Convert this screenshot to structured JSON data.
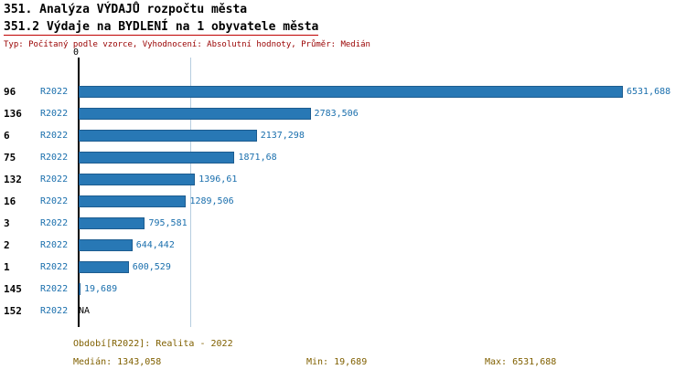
{
  "header": {
    "title1": "351. Analýza VÝDAJŮ rozpočtu města",
    "title2": "351.2 Výdaje na BYDLENÍ na 1 obyvatele města",
    "subtitle": "Typ: Počítaný podle vzorce, Vyhodnocení: Absolutní hodnoty, Průměr: Medián"
  },
  "chart_data": {
    "type": "bar",
    "orientation": "horizontal",
    "title": "351.2 Výdaje na BYDLENÍ na 1 obyvatele města",
    "categories": [
      "96",
      "136",
      "6",
      "75",
      "132",
      "16",
      "3",
      "2",
      "1",
      "145",
      "152"
    ],
    "series_label": "R2022",
    "values": [
      6531.688,
      2783.506,
      2137.298,
      1871.68,
      1396.61,
      1289.506,
      795.581,
      644.442,
      600.529,
      19.689,
      null
    ],
    "value_labels": [
      "6531,688",
      "2783,506",
      "2137,298",
      "1871,68",
      "1396,61",
      "1289,506",
      "795,581",
      "644,442",
      "600,529",
      "19,689",
      "NA"
    ],
    "axis_zero_label": "0",
    "xlim": [
      0,
      7100
    ],
    "median": 1343.058,
    "min": 19.689,
    "max": 6531.688,
    "bar_color": "#2878b5",
    "median_line_color": "#b6cde0",
    "grid": "median-line-only",
    "legend": "none"
  },
  "colors": {
    "title2_underline": "#c00000",
    "subtitle_text": "#990000",
    "period_and_stats_text": "#806000",
    "value_label_text": "#1a6fad"
  },
  "footer": {
    "period": "Období[R2022]: Realita - 2022",
    "median": "Medián: 1343,058",
    "min": "Min: 19,689",
    "max": "Max: 6531,688"
  }
}
